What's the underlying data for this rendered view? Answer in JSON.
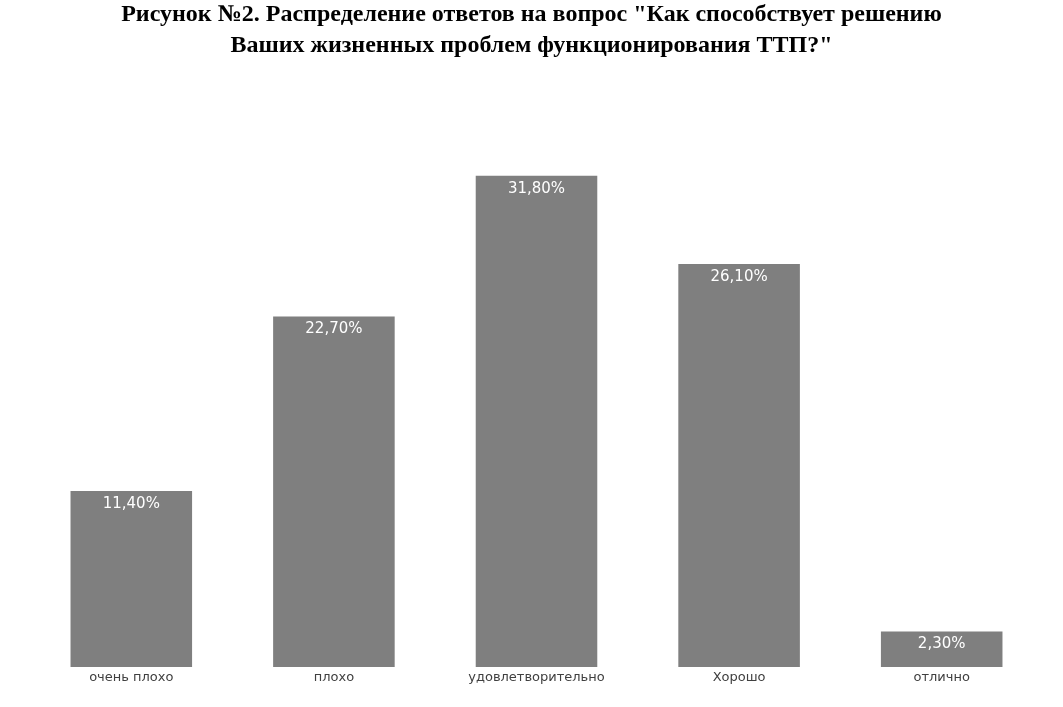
{
  "chart_data": {
    "type": "bar",
    "title": "Рисунок №2. Распределение ответов на вопрос \"Как способствует решению Ваших жизненных проблем функционирования ТТП?\"",
    "categories": [
      "очень плохо",
      "плохо",
      "удовлетворительно",
      "Хорошо",
      "отлично"
    ],
    "values": [
      11.4,
      22.7,
      31.8,
      26.1,
      2.3
    ],
    "value_labels": [
      "11,40%",
      "22,70%",
      "31,80%",
      "26,10%",
      "2,30%"
    ],
    "color": "#7f7f7f",
    "tick_labels": "x",
    "legend": false
  }
}
